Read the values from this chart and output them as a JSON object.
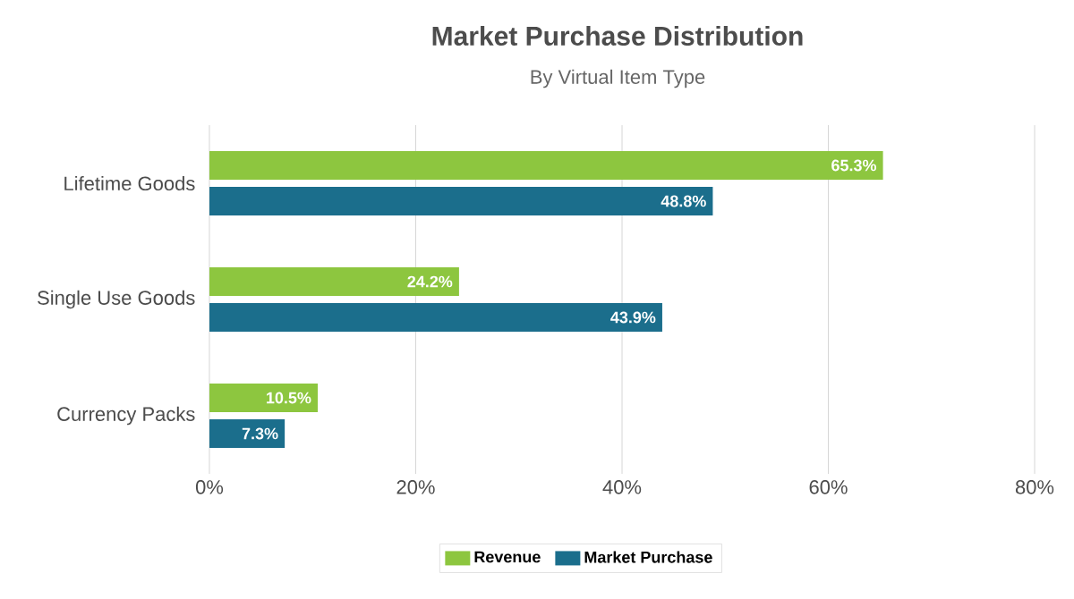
{
  "chart_data": {
    "type": "bar",
    "orientation": "horizontal",
    "title": "Market Purchase Distribution",
    "subtitle": "By Virtual Item Type",
    "categories": [
      "Lifetime Goods",
      "Single Use Goods",
      "Currency Packs"
    ],
    "series": [
      {
        "name": "Revenue",
        "color": "#8dc63f",
        "values": [
          65.3,
          24.2,
          10.5
        ],
        "value_labels": [
          "65.3%",
          "24.2%",
          "10.5%"
        ]
      },
      {
        "name": "Market Purchase",
        "color": "#1b6e8c",
        "values": [
          48.8,
          43.9,
          7.3
        ],
        "value_labels": [
          "48.8%",
          "43.9%",
          "7.3%"
        ]
      }
    ],
    "xlim": [
      0,
      80
    ],
    "xticks": [
      {
        "value": 0,
        "label": "0%"
      },
      {
        "value": 20,
        "label": "20%"
      },
      {
        "value": 40,
        "label": "40%"
      },
      {
        "value": 60,
        "label": "60%"
      },
      {
        "value": 80,
        "label": "80%"
      }
    ],
    "grid": "x",
    "legend": "bottom"
  }
}
